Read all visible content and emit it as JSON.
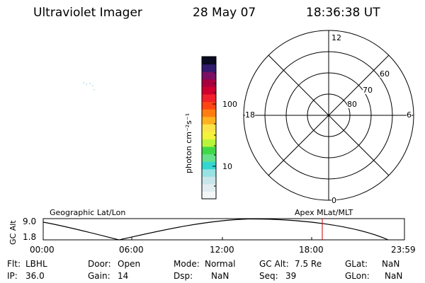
{
  "header": {
    "instrument": "Ultraviolet Imager",
    "date": "28 May 07",
    "time": "18:36:38 UT"
  },
  "colorbar": {
    "unit_label": "photon cm⁻²s⁻¹",
    "tick_100": "100",
    "tick_10": "10",
    "colors_bottom_to_top": [
      "#f4f7f8",
      "#e2edf0",
      "#c8e5ea",
      "#97e2e2",
      "#33d6d1",
      "#66e08a",
      "#40d848",
      "#b8f53a",
      "#f4f33c",
      "#fbe34a",
      "#ffb21f",
      "#ff7d10",
      "#ff4513",
      "#f2202c",
      "#d0002e",
      "#a8003e",
      "#7a0f63",
      "#321a6f",
      "#0a0a22"
    ]
  },
  "polar_plot": {
    "mlt_top": "12",
    "mlt_left": "18",
    "mlt_right": "6",
    "mlt_bottom": "0",
    "lat_60": "60",
    "lat_70": "70",
    "lat_80": "80"
  },
  "timeline": {
    "left_label": "Geographic Lat/Lon",
    "right_label": "Apex MLat/MLT",
    "y_axis_label": "GC Alt",
    "y_max": "9.0",
    "y_min": "1.8",
    "x_ticks": [
      "00:00",
      "06:00",
      "12:00",
      "18:00",
      "23:59"
    ],
    "current_time_marker": "18:36",
    "marker_color": "#cc0000"
  },
  "status": {
    "filter_label": "Flt:",
    "filter_value": "LBHL",
    "door_label": "Door:",
    "door_value": "Open",
    "mode_label": "Mode:",
    "mode_value": "Normal",
    "gc_alt_label": "GC Alt:",
    "gc_alt_value": "7.5 Re",
    "glat_label": "GLat:",
    "glat_value": "NaN",
    "ip_label": "IP:",
    "ip_value": "36.0",
    "gain_label": "Gain:",
    "gain_value": "14",
    "dsp_label": "Dsp:",
    "dsp_value": "NaN",
    "seq_label": "Seq:",
    "seq_value": "39",
    "glon_label": "GLon:",
    "glon_value": "NaN"
  }
}
